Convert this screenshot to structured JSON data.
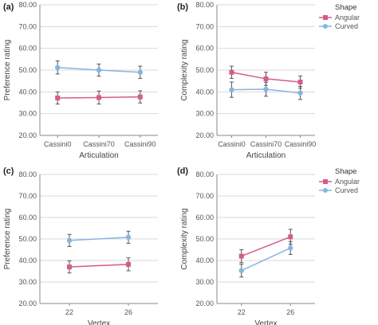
{
  "colors": {
    "angular": "#d45c86",
    "curved": "#88b5e0",
    "grid": "#d9d9d9",
    "axis": "#888888",
    "error": "#555555"
  },
  "legend": {
    "title": "Shape",
    "items": [
      "Angular",
      "Curved"
    ]
  },
  "chart_data": [
    {
      "panel": "(a)",
      "type": "line",
      "ylabel": "Preference rating",
      "xlabel": "Articulation",
      "categories": [
        "Cassini0",
        "Cassini70",
        "Cassini90"
      ],
      "ylim": [
        20,
        80
      ],
      "yticks": [
        "20.00",
        "30.00",
        "40.00",
        "50.00",
        "60.00",
        "70.00",
        "80.00"
      ],
      "grid": true,
      "legend": false,
      "series": [
        {
          "name": "Angular",
          "values": [
            37.2,
            37.4,
            37.7
          ],
          "err": [
            2.8,
            3.0,
            2.8
          ]
        },
        {
          "name": "Curved",
          "values": [
            51.2,
            50.0,
            49.0
          ],
          "err": [
            3.0,
            2.8,
            2.8
          ]
        }
      ]
    },
    {
      "panel": "(b)",
      "type": "line",
      "ylabel": "Complexity rating",
      "xlabel": "Articulation",
      "categories": [
        "Cassini0",
        "Cassini70",
        "Cassini90"
      ],
      "ylim": [
        20,
        80
      ],
      "yticks": [
        "20.00",
        "30.00",
        "40.00",
        "50.00",
        "60.00",
        "70.00",
        "80.00"
      ],
      "grid": true,
      "legend": "top-right",
      "series": [
        {
          "name": "Angular",
          "values": [
            49.0,
            46.0,
            44.5
          ],
          "err": [
            2.8,
            3.0,
            2.8
          ]
        },
        {
          "name": "Curved",
          "values": [
            41.0,
            41.2,
            39.5
          ],
          "err": [
            3.5,
            3.2,
            3.0
          ]
        }
      ]
    },
    {
      "panel": "(c)",
      "type": "line",
      "ylabel": "Preference rating",
      "xlabel": "Vertex",
      "categories": [
        "22",
        "26"
      ],
      "ylim": [
        20,
        80
      ],
      "yticks": [
        "20.00",
        "30.00",
        "40.00",
        "50.00",
        "60.00",
        "70.00",
        "80.00"
      ],
      "grid": true,
      "legend": false,
      "series": [
        {
          "name": "Angular",
          "values": [
            37.0,
            38.2
          ],
          "err": [
            2.8,
            3.0
          ]
        },
        {
          "name": "Curved",
          "values": [
            49.3,
            50.8
          ],
          "err": [
            2.8,
            2.8
          ]
        }
      ]
    },
    {
      "panel": "(d)",
      "type": "line",
      "ylabel": "Complexity rating",
      "xlabel": "Vertex",
      "categories": [
        "22",
        "26"
      ],
      "ylim": [
        20,
        80
      ],
      "yticks": [
        "20.00",
        "30.00",
        "40.00",
        "50.00",
        "60.00",
        "70.00",
        "80.00"
      ],
      "grid": true,
      "legend": "top-right",
      "series": [
        {
          "name": "Angular",
          "values": [
            42.0,
            51.0
          ],
          "err": [
            3.0,
            3.5
          ]
        },
        {
          "name": "Curved",
          "values": [
            35.3,
            45.8
          ],
          "err": [
            3.0,
            3.0
          ]
        }
      ]
    }
  ]
}
